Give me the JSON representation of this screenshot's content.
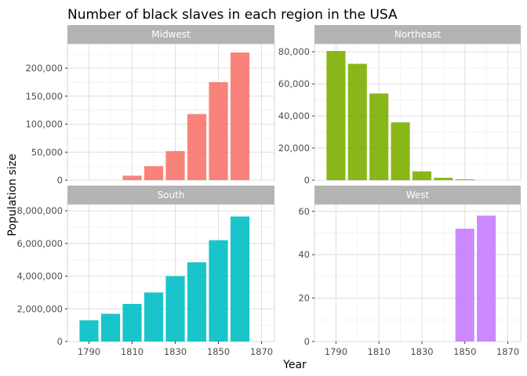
{
  "chart_data": {
    "type": "bar",
    "title": "Number of black slaves in each region in the USA",
    "xlabel": "Year",
    "ylabel": "Population size",
    "x_ticks": [
      1790,
      1810,
      1830,
      1850,
      1870
    ],
    "xlim": [
      1780,
      1876
    ],
    "grid": true,
    "legend": "none",
    "panels": [
      {
        "name": "Midwest",
        "color": "#F8766D",
        "ylim": [
          0,
          235000
        ],
        "y_ticks": [
          0,
          50000,
          100000,
          150000,
          200000
        ],
        "y_tick_labels": [
          "0",
          "50,000",
          "100,000",
          "150,000",
          "200,000"
        ],
        "x": [
          1790,
          1800,
          1810,
          1820,
          1830,
          1840,
          1850,
          1860
        ],
        "values": [
          0,
          0,
          8000,
          25000,
          52000,
          118000,
          175000,
          228000
        ]
      },
      {
        "name": "Northeast",
        "color": "#7CAE00",
        "ylim": [
          0,
          82000
        ],
        "y_ticks": [
          0,
          20000,
          40000,
          60000,
          80000
        ],
        "y_tick_labels": [
          "0",
          "20,000",
          "40,000",
          "60,000",
          "80,000"
        ],
        "x": [
          1790,
          1800,
          1810,
          1820,
          1830,
          1840,
          1850,
          1860
        ],
        "values": [
          80500,
          72500,
          54000,
          36000,
          5500,
          1500,
          500,
          0
        ]
      },
      {
        "name": "South",
        "color": "#00BFC4",
        "ylim": [
          0,
          8100000
        ],
        "y_ticks": [
          0,
          2000000,
          4000000,
          6000000,
          8000000
        ],
        "y_tick_labels": [
          "0",
          "2,000,000",
          "4,000,000",
          "6,000,000",
          "8,000,000"
        ],
        "x": [
          1790,
          1800,
          1810,
          1820,
          1830,
          1840,
          1850,
          1860
        ],
        "values": [
          1300000,
          1700000,
          2300000,
          3000000,
          4000000,
          4850000,
          6200000,
          7650000
        ]
      },
      {
        "name": "West",
        "color": "#C77CFF",
        "ylim": [
          0,
          61
        ],
        "y_ticks": [
          0,
          20,
          40,
          60
        ],
        "y_tick_labels": [
          "0",
          "20",
          "40",
          "60"
        ],
        "x": [
          1850,
          1860
        ],
        "values": [
          52,
          58
        ]
      }
    ]
  }
}
